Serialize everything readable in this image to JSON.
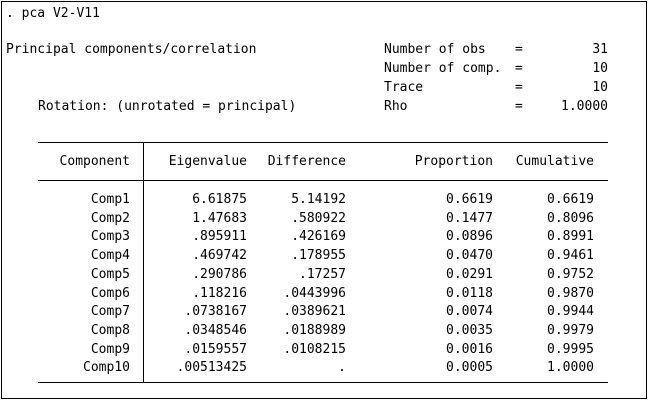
{
  "command": ". pca V2-V11",
  "title": "Principal components/correlation",
  "rotation": "Rotation: (unrotated = principal)",
  "stats": [
    {
      "label": "Number of obs",
      "eq": "=",
      "value": "31"
    },
    {
      "label": "Number of comp.",
      "eq": "=",
      "value": "10"
    },
    {
      "label": "Trace",
      "eq": "=",
      "value": "10"
    },
    {
      "label": "Rho",
      "eq": "=",
      "value": "1.0000"
    }
  ],
  "table": {
    "headers": {
      "component": "Component",
      "eigenvalue": "Eigenvalue",
      "difference": "Difference",
      "proportion": "Proportion",
      "cumulative": "Cumulative"
    },
    "rows": [
      {
        "component": "Comp1",
        "eigenvalue": "6.61875",
        "difference": "5.14192",
        "proportion": "0.6619",
        "cumulative": "0.6619"
      },
      {
        "component": "Comp2",
        "eigenvalue": "1.47683",
        "difference": ".580922",
        "proportion": "0.1477",
        "cumulative": "0.8096"
      },
      {
        "component": "Comp3",
        "eigenvalue": ".895911",
        "difference": ".426169",
        "proportion": "0.0896",
        "cumulative": "0.8991"
      },
      {
        "component": "Comp4",
        "eigenvalue": ".469742",
        "difference": ".178955",
        "proportion": "0.0470",
        "cumulative": "0.9461"
      },
      {
        "component": "Comp5",
        "eigenvalue": ".290786",
        "difference": ".17257",
        "proportion": "0.0291",
        "cumulative": "0.9752"
      },
      {
        "component": "Comp6",
        "eigenvalue": ".118216",
        "difference": ".0443996",
        "proportion": "0.0118",
        "cumulative": "0.9870"
      },
      {
        "component": "Comp7",
        "eigenvalue": ".0738167",
        "difference": ".0389621",
        "proportion": "0.0074",
        "cumulative": "0.9944"
      },
      {
        "component": "Comp8",
        "eigenvalue": ".0348546",
        "difference": ".0188989",
        "proportion": "0.0035",
        "cumulative": "0.9979"
      },
      {
        "component": "Comp9",
        "eigenvalue": ".0159557",
        "difference": ".0108215",
        "proportion": "0.0016",
        "cumulative": "0.9995"
      },
      {
        "component": "Comp10",
        "eigenvalue": ".00513425",
        "difference": ".",
        "proportion": "0.0005",
        "cumulative": "1.0000"
      }
    ]
  }
}
